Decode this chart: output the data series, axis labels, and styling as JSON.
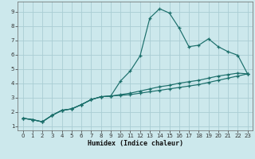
{
  "xlabel": "Humidex (Indice chaleur)",
  "background_color": "#cce8ec",
  "grid_color": "#aacdd4",
  "line_color": "#1a6e6a",
  "xlim": [
    -0.5,
    23.5
  ],
  "ylim": [
    0.7,
    9.7
  ],
  "xticks": [
    0,
    1,
    2,
    3,
    4,
    5,
    6,
    7,
    8,
    9,
    10,
    11,
    12,
    13,
    14,
    15,
    16,
    17,
    18,
    19,
    20,
    21,
    22,
    23
  ],
  "yticks": [
    1,
    2,
    3,
    4,
    5,
    6,
    7,
    8,
    9
  ],
  "line1_x": [
    0,
    1,
    2,
    3,
    4,
    5,
    6,
    7,
    8,
    9,
    10,
    11,
    12,
    13,
    14,
    15,
    16,
    17,
    18,
    19,
    20,
    21,
    22,
    23
  ],
  "line1_y": [
    1.55,
    1.45,
    1.3,
    1.75,
    2.1,
    2.2,
    2.5,
    2.85,
    3.05,
    3.1,
    4.15,
    4.85,
    5.9,
    8.55,
    9.2,
    8.9,
    7.85,
    6.55,
    6.65,
    7.1,
    6.55,
    6.2,
    5.95,
    4.65
  ],
  "line2_x": [
    0,
    1,
    2,
    3,
    4,
    5,
    6,
    7,
    8,
    9,
    10,
    11,
    12,
    13,
    14,
    15,
    16,
    17,
    18,
    19,
    20,
    21,
    22,
    23
  ],
  "line2_y": [
    1.55,
    1.45,
    1.3,
    1.75,
    2.1,
    2.2,
    2.5,
    2.85,
    3.05,
    3.1,
    3.2,
    3.3,
    3.45,
    3.6,
    3.75,
    3.85,
    4.0,
    4.1,
    4.2,
    4.35,
    4.5,
    4.6,
    4.7,
    4.65
  ],
  "line3_x": [
    0,
    1,
    2,
    3,
    4,
    5,
    6,
    7,
    8,
    9,
    10,
    11,
    12,
    13,
    14,
    15,
    16,
    17,
    18,
    19,
    20,
    21,
    22,
    23
  ],
  "line3_y": [
    1.55,
    1.45,
    1.3,
    1.75,
    2.1,
    2.2,
    2.5,
    2.85,
    3.05,
    3.1,
    3.15,
    3.2,
    3.3,
    3.4,
    3.5,
    3.6,
    3.7,
    3.8,
    3.9,
    4.05,
    4.2,
    4.35,
    4.5,
    4.65
  ]
}
